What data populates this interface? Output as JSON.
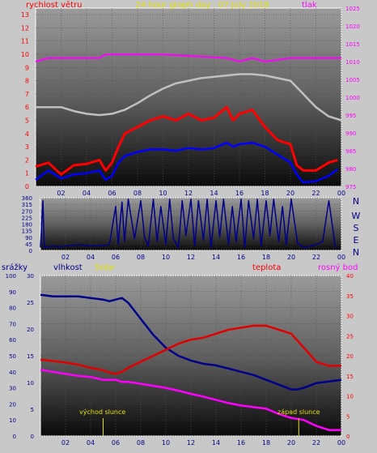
{
  "chart_data": [
    {
      "type": "line",
      "title": "24 hour graph day : 07 July 2018",
      "left_axis_label": "rychlost větru",
      "right_axis_label": "tlak",
      "x_ticks": [
        "02",
        "04",
        "06",
        "08",
        "10",
        "12",
        "14",
        "16",
        "18",
        "20",
        "22",
        "00"
      ],
      "wind_ticks": [
        "0",
        "1",
        "2",
        "3",
        "4",
        "5",
        "6",
        "7",
        "8",
        "9",
        "10",
        "11",
        "12",
        "13"
      ],
      "pressure_ticks": [
        "975",
        "980",
        "985",
        "990",
        "995",
        "1000",
        "1005",
        "1010",
        "1015",
        "1020",
        "1025"
      ],
      "wind_ylim": [
        0,
        13.5
      ],
      "pressure_ylim": [
        975,
        1025
      ],
      "series": [
        {
          "role": "gust",
          "color": "#ff0000",
          "x": [
            0,
            1,
            2,
            3,
            4,
            5,
            5.5,
            6,
            6.5,
            7,
            8,
            9,
            10,
            11,
            12,
            13,
            14,
            15,
            15.5,
            16,
            17,
            18,
            19,
            20,
            20.5,
            21,
            22,
            23,
            23.7
          ],
          "values": [
            1.5,
            1.8,
            0.9,
            1.6,
            1.7,
            2.0,
            1.2,
            1.8,
            3.0,
            4.0,
            4.5,
            5.0,
            5.3,
            5.0,
            5.5,
            5.0,
            5.2,
            6.0,
            5.0,
            5.5,
            5.8,
            4.5,
            3.5,
            3.2,
            1.6,
            1.2,
            1.2,
            1.8,
            2.0
          ]
        },
        {
          "role": "wind",
          "color": "#0000ff",
          "x": [
            0,
            1,
            2,
            3,
            4,
            5,
            5.5,
            6,
            6.5,
            7,
            8,
            9,
            10,
            11,
            12,
            13,
            14,
            15,
            15.5,
            16,
            17,
            18,
            19,
            20,
            20.5,
            21,
            22,
            23,
            23.7
          ],
          "values": [
            0.5,
            1.2,
            0.6,
            0.9,
            1.0,
            1.2,
            0.5,
            0.8,
            1.8,
            2.3,
            2.6,
            2.8,
            2.8,
            2.7,
            2.9,
            2.8,
            2.9,
            3.3,
            3.0,
            3.2,
            3.3,
            3.0,
            2.4,
            1.8,
            0.9,
            0.3,
            0.4,
            0.8,
            1.3
          ]
        },
        {
          "role": "pressure",
          "color": "#ff00ff",
          "x": [
            0,
            1,
            5,
            5.5,
            10,
            15,
            16,
            17,
            18,
            20,
            21,
            24
          ],
          "values": [
            1010,
            1011,
            1011,
            1012,
            1012,
            1011,
            1010,
            1011,
            1010,
            1011,
            1011,
            1011
          ]
        },
        {
          "role": "temperature-trace",
          "color": "#c0c0c0",
          "x": [
            0,
            2,
            3,
            4,
            5,
            6,
            7,
            8,
            9,
            10,
            11,
            12,
            13,
            14,
            15,
            16,
            17,
            18,
            19,
            20,
            20.5,
            21,
            21.5,
            22,
            23,
            24
          ],
          "values": [
            6.0,
            6.0,
            5.7,
            5.5,
            5.4,
            5.5,
            5.8,
            6.3,
            6.9,
            7.4,
            7.8,
            8.0,
            8.2,
            8.3,
            8.4,
            8.5,
            8.5,
            8.4,
            8.2,
            8.0,
            7.5,
            7.0,
            6.5,
            6.0,
            5.3,
            5.0
          ]
        }
      ]
    },
    {
      "type": "line",
      "direction_labels": [
        "N",
        "W",
        "S",
        "E",
        "N"
      ],
      "y_ticks": [
        "0",
        "45",
        "90",
        "135",
        "180",
        "225",
        "270",
        "315",
        "360"
      ],
      "ylim": [
        0,
        360
      ],
      "x_ticks": [
        "02",
        "04",
        "06",
        "08",
        "10",
        "12",
        "14",
        "16",
        "18",
        "20",
        "22",
        "00"
      ],
      "series": [
        {
          "role": "wind-direction",
          "color": "#00008b",
          "x": [
            0,
            0.2,
            0.3,
            1,
            1.5,
            2,
            3,
            4,
            5,
            5.5,
            6,
            6.2,
            6.5,
            6.7,
            7,
            7.5,
            8,
            8.3,
            8.6,
            9,
            9.3,
            9.6,
            10,
            10.3,
            10.6,
            11,
            11.3,
            11.6,
            12,
            12.3,
            12.6,
            13,
            13.3,
            13.6,
            14,
            14.3,
            14.6,
            15,
            15.3,
            15.6,
            16,
            16.3,
            16.6,
            17,
            17.3,
            17.6,
            18,
            18.3,
            18.6,
            19,
            19.3,
            19.6,
            20,
            20.5,
            21,
            21.5,
            22,
            22.5,
            23,
            23.5,
            23.7
          ],
          "values": [
            20,
            340,
            20,
            30,
            25,
            30,
            40,
            30,
            35,
            40,
            300,
            40,
            330,
            60,
            350,
            80,
            340,
            90,
            30,
            350,
            60,
            300,
            40,
            350,
            80,
            20,
            340,
            100,
            350,
            30,
            340,
            70,
            350,
            20,
            340,
            90,
            350,
            40,
            300,
            60,
            350,
            20,
            340,
            80,
            350,
            30,
            340,
            100,
            350,
            60,
            300,
            40,
            350,
            50,
            20,
            30,
            40,
            60,
            340,
            30,
            20
          ]
        }
      ]
    },
    {
      "type": "line",
      "left_axis_labels": [
        "srážky",
        "vlhkost",
        "Solar"
      ],
      "right_axis_labels": [
        "teplota",
        "rosný bod"
      ],
      "humidity_ticks": [
        "0",
        "10",
        "20",
        "30",
        "40",
        "50",
        "60",
        "70",
        "80",
        "90",
        "100"
      ],
      "rain_ticks": [
        "0",
        "5",
        "10",
        "15",
        "20",
        "25",
        "30"
      ],
      "temp_ticks": [
        "0",
        "5",
        "10",
        "15",
        "20",
        "25",
        "30",
        "35",
        "40"
      ],
      "x_ticks": [
        "02",
        "04",
        "06",
        "08",
        "10",
        "12",
        "14",
        "16",
        "18",
        "20",
        "22",
        "00"
      ],
      "annotations": [
        "východ slunce",
        "západ slunce"
      ],
      "humidity_ylim": [
        0,
        100
      ],
      "temp_ylim": [
        0,
        40
      ],
      "series": [
        {
          "role": "humidity",
          "color": "#00008b",
          "x": [
            0,
            1,
            2,
            3,
            4,
            5,
            5.5,
            6,
            6.5,
            7,
            7.5,
            8,
            9,
            10,
            11,
            12,
            13,
            14,
            15,
            16,
            17,
            18,
            19,
            20,
            20.5,
            21,
            22,
            23,
            24
          ],
          "values": [
            88,
            87,
            87,
            87,
            86,
            85,
            84,
            85,
            86,
            83,
            78,
            73,
            63,
            55,
            50,
            47,
            45,
            44,
            42,
            40,
            38,
            35,
            32,
            29,
            29,
            30,
            33,
            34,
            35
          ]
        },
        {
          "role": "temperature",
          "color": "#e00000",
          "x": [
            0,
            1,
            2,
            3,
            4,
            5,
            5.5,
            6,
            6.5,
            7,
            8,
            9,
            10,
            11,
            12,
            13,
            14,
            15,
            16,
            17,
            18,
            19,
            20,
            21,
            22,
            23,
            24
          ],
          "values": [
            19,
            18.7,
            18.3,
            17.8,
            17.0,
            16.4,
            15.8,
            15.5,
            16.0,
            17.0,
            18.5,
            20.0,
            21.5,
            23.0,
            24.0,
            24.5,
            25.5,
            26.5,
            27.0,
            27.5,
            27.5,
            26.5,
            25.5,
            22.0,
            18.5,
            17.5,
            17.5
          ]
        },
        {
          "role": "dew-point",
          "color": "#ff00ff",
          "x": [
            0,
            1,
            2,
            3,
            4,
            5,
            6,
            6.5,
            7,
            8,
            9,
            10,
            11,
            12,
            13,
            14,
            15,
            16,
            17,
            18,
            19,
            19.5,
            20,
            21,
            22,
            23,
            24
          ],
          "values": [
            16.5,
            16.0,
            15.5,
            15.0,
            14.7,
            14.0,
            14.0,
            13.5,
            13.5,
            13.0,
            12.5,
            12.0,
            11.3,
            10.5,
            9.8,
            9.0,
            8.2,
            7.6,
            7.2,
            6.8,
            5.5,
            5.0,
            4.5,
            4.0,
            2.5,
            1.5,
            1.5
          ]
        }
      ]
    }
  ]
}
